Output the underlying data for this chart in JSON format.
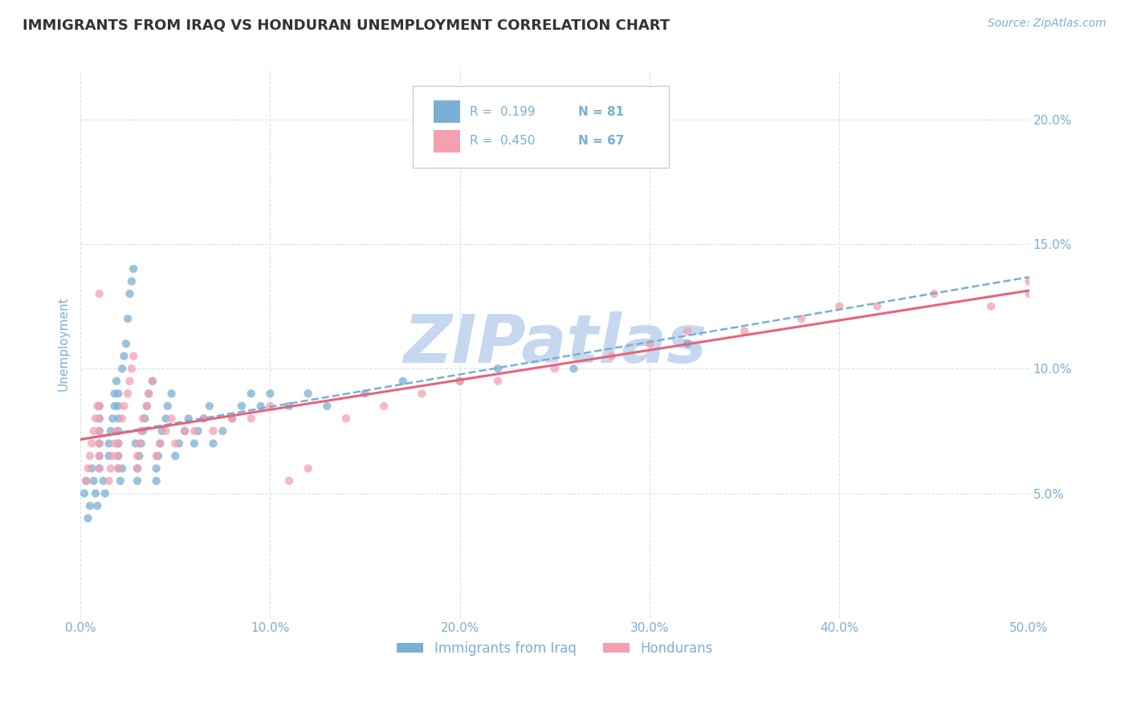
{
  "title": "IMMIGRANTS FROM IRAQ VS HONDURAN UNEMPLOYMENT CORRELATION CHART",
  "source_text": "Source: ZipAtlas.com",
  "ylabel": "Unemployment",
  "x_min": 0.0,
  "x_max": 0.5,
  "y_min": 0.0,
  "y_max": 0.22,
  "x_ticks": [
    0.0,
    0.1,
    0.2,
    0.3,
    0.4,
    0.5
  ],
  "x_tick_labels": [
    "0.0%",
    "10.0%",
    "20.0%",
    "30.0%",
    "40.0%",
    "50.0%"
  ],
  "y_ticks": [
    0.05,
    0.1,
    0.15,
    0.2
  ],
  "y_tick_labels": [
    "5.0%",
    "10.0%",
    "15.0%",
    "20.0%"
  ],
  "legend_r1": "R =  0.199",
  "legend_n1": "N = 81",
  "legend_r2": "R =  0.450",
  "legend_n2": "N = 67",
  "series1_label": "Immigrants from Iraq",
  "series2_label": "Hondurans",
  "series1_color": "#7bafd4",
  "series2_color": "#f4a0b0",
  "trendline1_color": "#7bafd4",
  "trendline2_color": "#e8637a",
  "watermark": "ZIPatlas",
  "watermark_color": "#c5d8f0",
  "title_color": "#333333",
  "axis_color": "#7bafd4",
  "grid_color": "#d0dff0",
  "background_color": "#ffffff",
  "iraq_x": [
    0.002,
    0.003,
    0.004,
    0.005,
    0.006,
    0.007,
    0.008,
    0.009,
    0.01,
    0.01,
    0.01,
    0.01,
    0.01,
    0.01,
    0.012,
    0.013,
    0.015,
    0.015,
    0.016,
    0.017,
    0.018,
    0.018,
    0.019,
    0.02,
    0.02,
    0.02,
    0.02,
    0.02,
    0.02,
    0.02,
    0.021,
    0.022,
    0.022,
    0.023,
    0.024,
    0.025,
    0.026,
    0.027,
    0.028,
    0.029,
    0.03,
    0.03,
    0.031,
    0.032,
    0.033,
    0.034,
    0.035,
    0.036,
    0.038,
    0.04,
    0.04,
    0.041,
    0.042,
    0.043,
    0.045,
    0.046,
    0.048,
    0.05,
    0.052,
    0.055,
    0.057,
    0.06,
    0.062,
    0.065,
    0.068,
    0.07,
    0.075,
    0.08,
    0.085,
    0.09,
    0.095,
    0.1,
    0.11,
    0.12,
    0.13,
    0.15,
    0.17,
    0.2,
    0.22,
    0.26,
    0.32
  ],
  "iraq_y": [
    0.05,
    0.055,
    0.04,
    0.045,
    0.06,
    0.055,
    0.05,
    0.045,
    0.065,
    0.07,
    0.075,
    0.08,
    0.085,
    0.06,
    0.055,
    0.05,
    0.065,
    0.07,
    0.075,
    0.08,
    0.085,
    0.09,
    0.095,
    0.06,
    0.065,
    0.07,
    0.075,
    0.08,
    0.085,
    0.09,
    0.055,
    0.06,
    0.1,
    0.105,
    0.11,
    0.12,
    0.13,
    0.135,
    0.14,
    0.07,
    0.055,
    0.06,
    0.065,
    0.07,
    0.075,
    0.08,
    0.085,
    0.09,
    0.095,
    0.055,
    0.06,
    0.065,
    0.07,
    0.075,
    0.08,
    0.085,
    0.09,
    0.065,
    0.07,
    0.075,
    0.08,
    0.07,
    0.075,
    0.08,
    0.085,
    0.07,
    0.075,
    0.08,
    0.085,
    0.09,
    0.085,
    0.09,
    0.085,
    0.09,
    0.085,
    0.09,
    0.095,
    0.095,
    0.1,
    0.1,
    0.11
  ],
  "honduras_x": [
    0.003,
    0.004,
    0.005,
    0.006,
    0.007,
    0.008,
    0.009,
    0.01,
    0.01,
    0.01,
    0.01,
    0.01,
    0.01,
    0.01,
    0.015,
    0.016,
    0.017,
    0.018,
    0.019,
    0.02,
    0.02,
    0.02,
    0.022,
    0.023,
    0.025,
    0.026,
    0.027,
    0.028,
    0.03,
    0.03,
    0.031,
    0.032,
    0.033,
    0.035,
    0.036,
    0.038,
    0.04,
    0.042,
    0.045,
    0.048,
    0.05,
    0.055,
    0.06,
    0.065,
    0.07,
    0.08,
    0.09,
    0.1,
    0.11,
    0.12,
    0.14,
    0.16,
    0.18,
    0.2,
    0.22,
    0.25,
    0.28,
    0.3,
    0.32,
    0.35,
    0.38,
    0.4,
    0.42,
    0.45,
    0.48,
    0.5,
    0.5
  ],
  "honduras_y": [
    0.055,
    0.06,
    0.065,
    0.07,
    0.075,
    0.08,
    0.085,
    0.06,
    0.065,
    0.07,
    0.075,
    0.08,
    0.085,
    0.13,
    0.055,
    0.06,
    0.065,
    0.07,
    0.075,
    0.06,
    0.065,
    0.07,
    0.08,
    0.085,
    0.09,
    0.095,
    0.1,
    0.105,
    0.06,
    0.065,
    0.07,
    0.075,
    0.08,
    0.085,
    0.09,
    0.095,
    0.065,
    0.07,
    0.075,
    0.08,
    0.07,
    0.075,
    0.075,
    0.08,
    0.075,
    0.08,
    0.08,
    0.085,
    0.055,
    0.06,
    0.08,
    0.085,
    0.09,
    0.095,
    0.095,
    0.1,
    0.105,
    0.11,
    0.115,
    0.115,
    0.12,
    0.125,
    0.125,
    0.13,
    0.125,
    0.13,
    0.135
  ]
}
